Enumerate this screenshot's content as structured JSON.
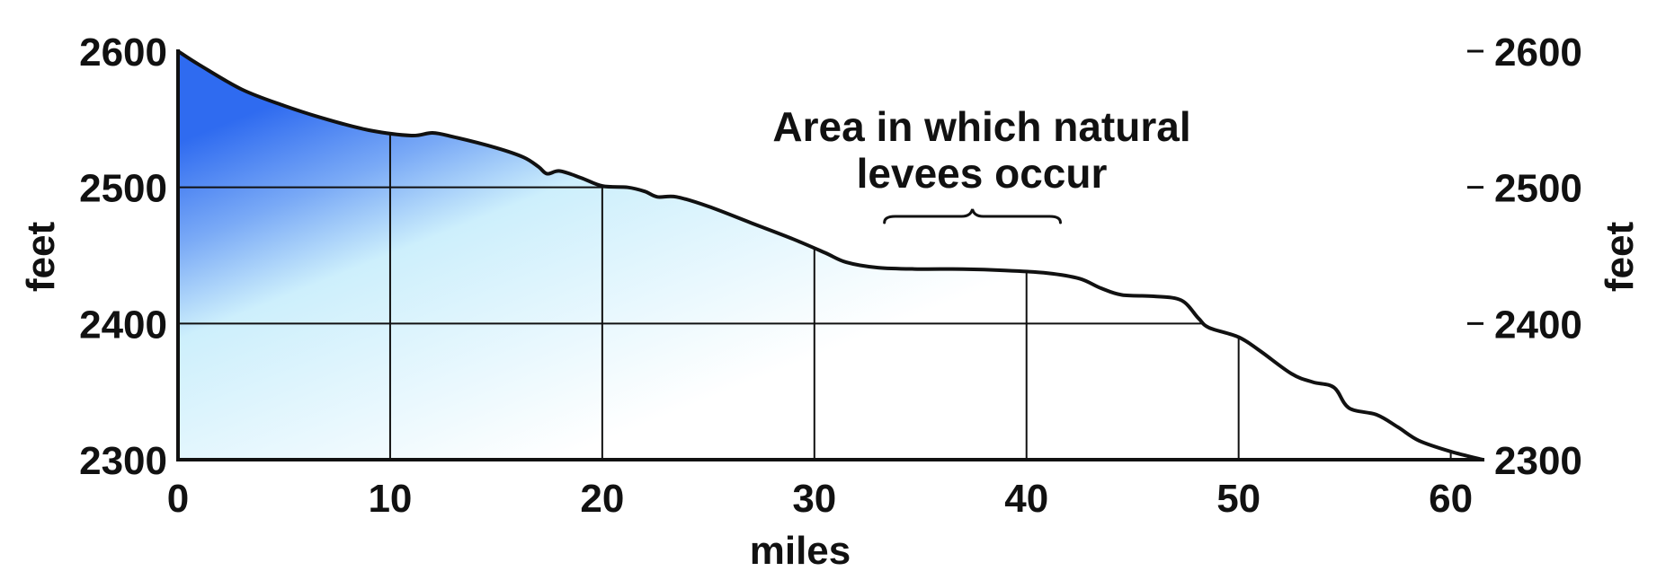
{
  "chart_data": {
    "type": "area",
    "title": "",
    "xlabel": "miles",
    "ylabel": "feet",
    "ylabel_right": "feet",
    "xlim": [
      0,
      61.5
    ],
    "ylim": [
      2300,
      2600
    ],
    "x_ticks": [
      "0",
      "10",
      "20",
      "30",
      "40",
      "50",
      "60"
    ],
    "y_ticks": [
      "2300",
      "2400",
      "2500",
      "2600"
    ],
    "grid": true,
    "annotation": {
      "lines": [
        "Area in which natural",
        "levees occur"
      ],
      "x_range": [
        33.3,
        41.6
      ]
    },
    "colors": {
      "fill_top": "#2f6bf0",
      "fill_bottom": "#ffffff",
      "mid": "#cdeffc",
      "line": "#111111"
    },
    "series": [
      {
        "x": [
          0,
          1,
          3,
          5,
          7,
          9,
          11,
          12,
          13,
          15,
          16.3,
          17,
          17.4,
          18,
          19,
          20,
          21.2,
          22,
          22.6,
          23.5,
          25,
          27,
          29,
          30.5,
          31.5,
          33,
          35,
          37,
          39,
          41,
          42.5,
          43.5,
          44.5,
          46,
          47.3,
          48.1,
          48.6,
          50,
          51,
          52.5,
          53.5,
          54.5,
          55.2,
          56.5,
          57.5,
          58.5,
          60,
          61.5
        ],
        "y": [
          2600,
          2590,
          2572,
          2560,
          2550,
          2542,
          2538,
          2540,
          2537,
          2529,
          2522,
          2515,
          2510,
          2512,
          2507,
          2501,
          2500,
          2497,
          2493,
          2493,
          2486,
          2474,
          2462,
          2452,
          2445,
          2441,
          2440,
          2440,
          2439,
          2437,
          2433,
          2426,
          2421,
          2420,
          2417,
          2404,
          2397,
          2390,
          2380,
          2363,
          2357,
          2353,
          2338,
          2333,
          2324,
          2314,
          2306,
          2300
        ]
      }
    ]
  }
}
